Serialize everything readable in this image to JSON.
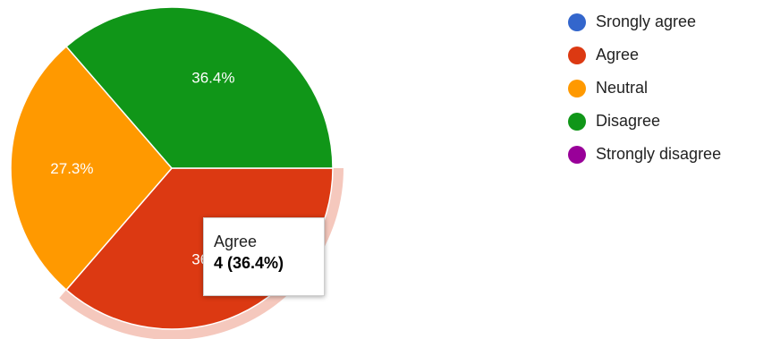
{
  "chart_data": {
    "type": "pie",
    "series": [
      {
        "name": "Srongly agree",
        "value": 0,
        "percent": 0,
        "color": "#3366cc"
      },
      {
        "name": "Agree",
        "value": 4,
        "percent": 36.4,
        "color": "#dc3912"
      },
      {
        "name": "Neutral",
        "value": 3,
        "percent": 27.3,
        "color": "#ff9900"
      },
      {
        "name": "Disagree",
        "value": 4,
        "percent": 36.4,
        "color": "#109618"
      },
      {
        "name": "Strongly disagree",
        "value": 0,
        "percent": 0,
        "color": "#990099"
      }
    ],
    "slice_labels": {
      "Agree": "36.4%",
      "Neutral": "27.3%",
      "Disagree": "36.4%"
    },
    "highlighted": "Agree",
    "legend_position": "right",
    "tooltip": {
      "title": "Agree",
      "value_text": "4 (36.4%)"
    }
  }
}
